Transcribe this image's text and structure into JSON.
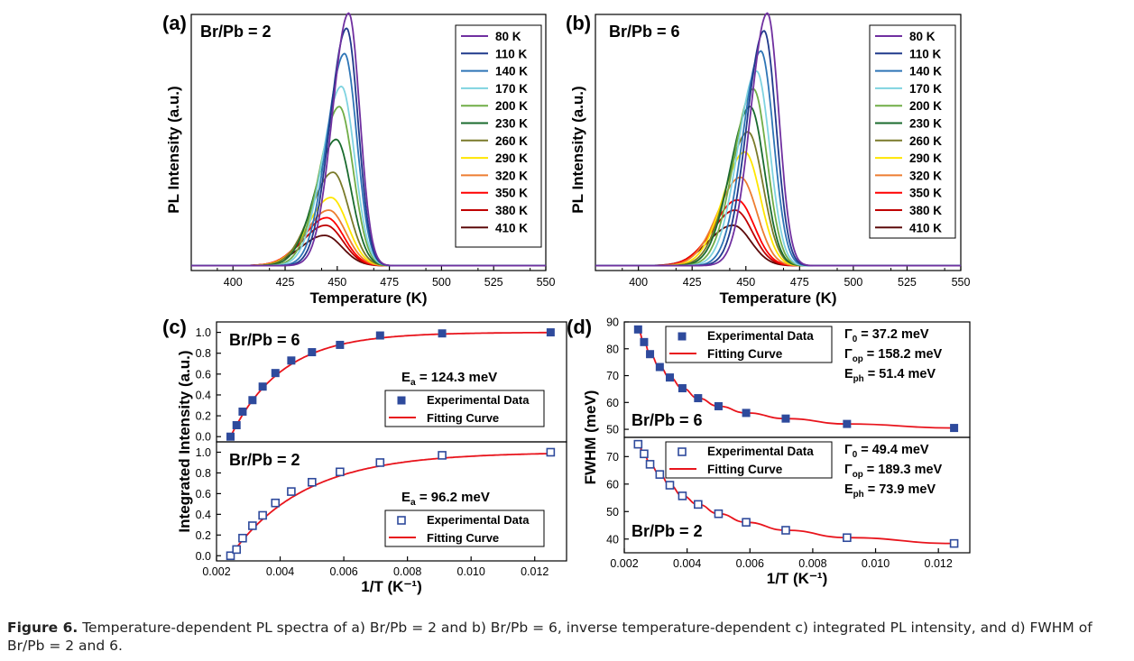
{
  "caption": {
    "label": "Figure 6.",
    "text": "Temperature-dependent PL spectra of a) Br/Pb = 2 and b) Br/Pb = 6, inverse temperature-dependent c) integrated PL intensity, and d) FWHM of Br/Pb = 2 and 6."
  },
  "chart_data": [
    {
      "panel": "(a)",
      "type": "line",
      "annotation": "Br/Pb = 2",
      "xlabel": "Temperature (K)",
      "ylabel": "PL Intensity (a.u.)",
      "xlim": [
        380,
        550
      ],
      "xticks": [
        400,
        425,
        450,
        475,
        500,
        525,
        550
      ],
      "legend_position": "top-right",
      "series": [
        {
          "name": "80 K",
          "peak_x": 455.5,
          "peak_y": 1.0,
          "color": "#7030a0"
        },
        {
          "name": "110 K",
          "peak_x": 454.5,
          "peak_y": 0.94,
          "color": "#203a8c"
        },
        {
          "name": "140 K",
          "peak_x": 453.5,
          "peak_y": 0.84,
          "color": "#2e75b6"
        },
        {
          "name": "170 K",
          "peak_x": 452.0,
          "peak_y": 0.71,
          "color": "#7fd3e0"
        },
        {
          "name": "200 K",
          "peak_x": 451.0,
          "peak_y": 0.63,
          "color": "#70ad47"
        },
        {
          "name": "230 K",
          "peak_x": 449.5,
          "peak_y": 0.5,
          "color": "#1a6b2e"
        },
        {
          "name": "260 K",
          "peak_x": 448.0,
          "peak_y": 0.37,
          "color": "#7a7a2a"
        },
        {
          "name": "290 K",
          "peak_x": 447.0,
          "peak_y": 0.27,
          "color": "#ffe600"
        },
        {
          "name": "320 K",
          "peak_x": 446.0,
          "peak_y": 0.22,
          "color": "#ed7d31"
        },
        {
          "name": "350 K",
          "peak_x": 445.0,
          "peak_y": 0.19,
          "color": "#ff0000"
        },
        {
          "name": "380 K",
          "peak_x": 444.5,
          "peak_y": 0.16,
          "color": "#c00000"
        },
        {
          "name": "410 K",
          "peak_x": 444.0,
          "peak_y": 0.12,
          "color": "#5c0a0a"
        }
      ]
    },
    {
      "panel": "(b)",
      "type": "line",
      "annotation": "Br/Pb = 6",
      "xlabel": "Temperature (K)",
      "ylabel": "PL Intensity (a.u.)",
      "xlim": [
        380,
        550
      ],
      "xticks": [
        400,
        425,
        450,
        475,
        500,
        525,
        550
      ],
      "legend_position": "top-right",
      "series": [
        {
          "name": "80 K",
          "peak_x": 460.0,
          "peak_y": 1.0,
          "color": "#7030a0"
        },
        {
          "name": "110 K",
          "peak_x": 458.5,
          "peak_y": 0.93,
          "color": "#203a8c"
        },
        {
          "name": "140 K",
          "peak_x": 457.0,
          "peak_y": 0.85,
          "color": "#2e75b6"
        },
        {
          "name": "170 K",
          "peak_x": 455.0,
          "peak_y": 0.77,
          "color": "#7fd3e0"
        },
        {
          "name": "200 K",
          "peak_x": 453.5,
          "peak_y": 0.7,
          "color": "#70ad47"
        },
        {
          "name": "230 K",
          "peak_x": 452.0,
          "peak_y": 0.63,
          "color": "#1a6b2e"
        },
        {
          "name": "260 K",
          "peak_x": 451.0,
          "peak_y": 0.53,
          "color": "#7a7a2a"
        },
        {
          "name": "290 K",
          "peak_x": 449.5,
          "peak_y": 0.45,
          "color": "#ffe600"
        },
        {
          "name": "320 K",
          "peak_x": 447.5,
          "peak_y": 0.35,
          "color": "#ed7d31"
        },
        {
          "name": "350 K",
          "peak_x": 446.0,
          "peak_y": 0.26,
          "color": "#ff0000"
        },
        {
          "name": "380 K",
          "peak_x": 445.0,
          "peak_y": 0.22,
          "color": "#c00000"
        },
        {
          "name": "410 K",
          "peak_x": 444.0,
          "peak_y": 0.16,
          "color": "#5c0a0a"
        }
      ]
    },
    {
      "panel": "(c)",
      "type": "scatter",
      "xlabel": "1/T (K⁻¹)",
      "ylabel": "Integrated Intensity (a.u.)",
      "xlim": [
        0.002,
        0.013
      ],
      "xticks": [
        "0.002",
        "0.004",
        "0.006",
        "0.008",
        "0.010",
        "0.012"
      ],
      "ylim": [
        -0.05,
        1.1
      ],
      "yticks": [
        "0.0",
        "0.2",
        "0.4",
        "0.6",
        "0.8",
        "1.0"
      ],
      "legend_entries": [
        "Experimental Data",
        "Fitting Curve"
      ],
      "subplots": [
        {
          "annotation": "Br/Pb = 6",
          "ea_symbol": "E",
          "ea_sub": "a",
          "ea_value": " = 124.3 meV",
          "marker": "filled",
          "x": [
            0.00244,
            0.00263,
            0.00282,
            0.00313,
            0.00345,
            0.00385,
            0.00435,
            0.005,
            0.00588,
            0.00714,
            0.00909,
            0.0125
          ],
          "y": [
            0.0,
            0.11,
            0.24,
            0.35,
            0.48,
            0.61,
            0.73,
            0.81,
            0.88,
            0.97,
            0.99,
            1.0
          ]
        },
        {
          "annotation": "Br/Pb = 2",
          "ea_symbol": "E",
          "ea_sub": "a",
          "ea_value": " = 96.2 meV",
          "marker": "open",
          "x": [
            0.00244,
            0.00263,
            0.00282,
            0.00313,
            0.00345,
            0.00385,
            0.00435,
            0.005,
            0.00588,
            0.00714,
            0.00909,
            0.0125
          ],
          "y": [
            0.0,
            0.06,
            0.17,
            0.29,
            0.39,
            0.51,
            0.62,
            0.71,
            0.81,
            0.9,
            0.97,
            1.0
          ]
        }
      ]
    },
    {
      "panel": "(d)",
      "type": "scatter",
      "xlabel": "1/T (K⁻¹)",
      "ylabel": "FWHM (meV)",
      "xlim": [
        0.002,
        0.013
      ],
      "xticks": [
        "0.002",
        "0.004",
        "0.006",
        "0.008",
        "0.010",
        "0.012"
      ],
      "legend_entries": [
        "Experimental Data",
        "Fitting Curve"
      ],
      "subplots": [
        {
          "annotation": "Br/Pb = 6",
          "ylim": [
            47,
            90
          ],
          "yticks": [
            "50",
            "60",
            "70",
            "80",
            "90"
          ],
          "params": [
            {
              "sym": "Γ",
              "sub": "0",
              "val": " = 37.2 meV"
            },
            {
              "sym": "Γ",
              "sub": "op",
              "val": " =  158.2 meV"
            },
            {
              "sym": "E",
              "sub": "ph",
              "val": " =   51.4 meV"
            }
          ],
          "marker": "filled",
          "x": [
            0.00244,
            0.00263,
            0.00282,
            0.00313,
            0.00345,
            0.00385,
            0.00435,
            0.005,
            0.00588,
            0.00714,
            0.00909,
            0.0125
          ],
          "y": [
            87.2,
            82.5,
            78.0,
            73.2,
            69.3,
            65.3,
            61.6,
            58.6,
            56.1,
            54.0,
            52.0,
            50.5
          ]
        },
        {
          "annotation": "Br/Pb = 2",
          "ylim": [
            35,
            77
          ],
          "yticks": [
            "40",
            "50",
            "60",
            "70"
          ],
          "params": [
            {
              "sym": "Γ",
              "sub": "0",
              "val": " = 49.4 meV"
            },
            {
              "sym": "Γ",
              "sub": "op",
              "val": " = 189.3 meV"
            },
            {
              "sym": "E",
              "sub": "ph",
              "val": " = 73.9 meV"
            }
          ],
          "marker": "open",
          "x": [
            0.00244,
            0.00263,
            0.00282,
            0.00313,
            0.00345,
            0.00385,
            0.00435,
            0.005,
            0.00588,
            0.00714,
            0.00909,
            0.0125
          ],
          "y": [
            74.5,
            71.0,
            67.2,
            63.5,
            59.6,
            55.7,
            52.6,
            49.2,
            46.1,
            43.2,
            40.5,
            38.4
          ]
        }
      ]
    }
  ],
  "colors": {
    "data_marker": "#2e4a9c",
    "fit_curve": "#e8141c",
    "axis": "#000000"
  }
}
